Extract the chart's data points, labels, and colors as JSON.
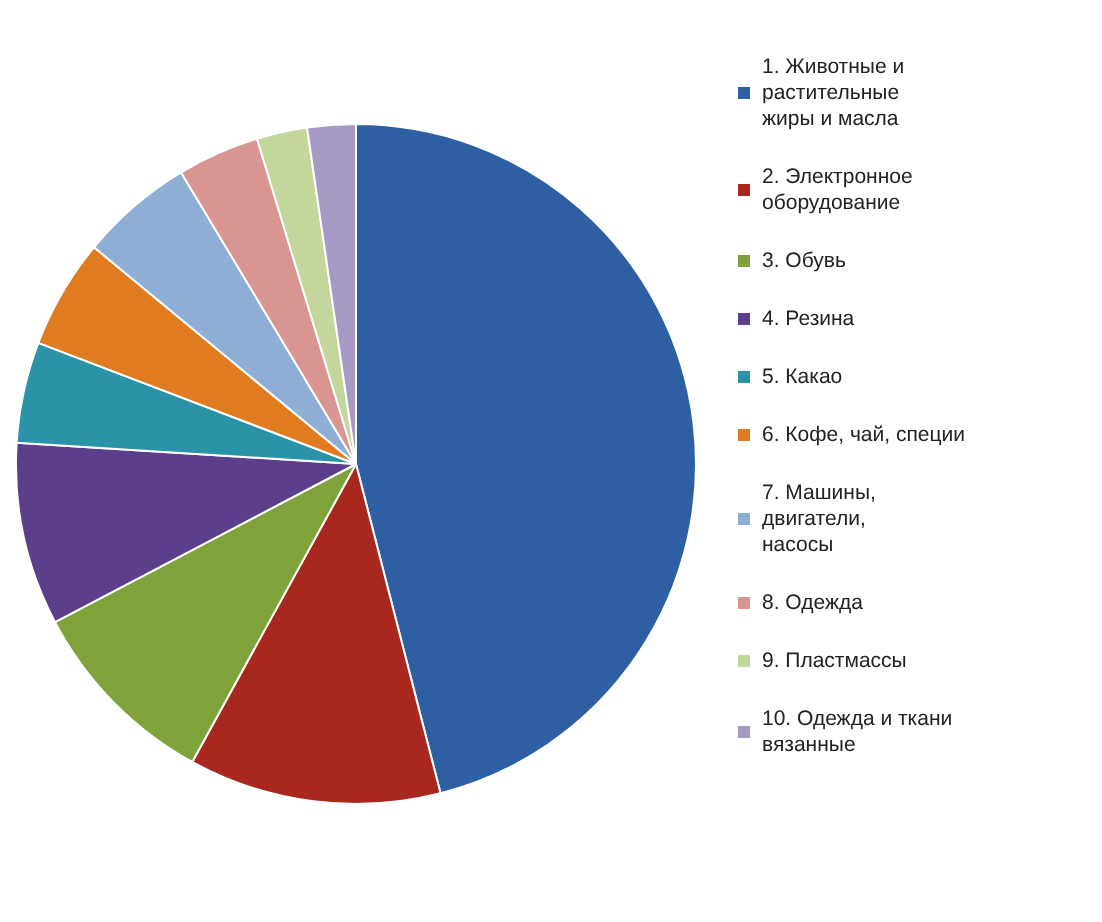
{
  "chart_data": {
    "type": "pie",
    "categories": [
      "1. Животные и растительные жиры и масла",
      "2. Электронное оборудование",
      "3. Обувь",
      "4. Резина",
      "5. Какао",
      "6. Кофе, чай, специи",
      "7. Машины, двигатели, насосы",
      "8. Одежда",
      "9. Пластмассы",
      "10. Одежда и ткани вязанные"
    ],
    "values": [
      46,
      12,
      9.3,
      8.7,
      4.8,
      5.2,
      5.4,
      3.9,
      2.4,
      2.3
    ],
    "colors": [
      "#2e5fa3",
      "#a8281f",
      "#7fa33a",
      "#5c3f8a",
      "#2b93a8",
      "#e07b20",
      "#8eaed6",
      "#d99590",
      "#c3d69b",
      "#a79ac4"
    ],
    "legend": "right"
  }
}
